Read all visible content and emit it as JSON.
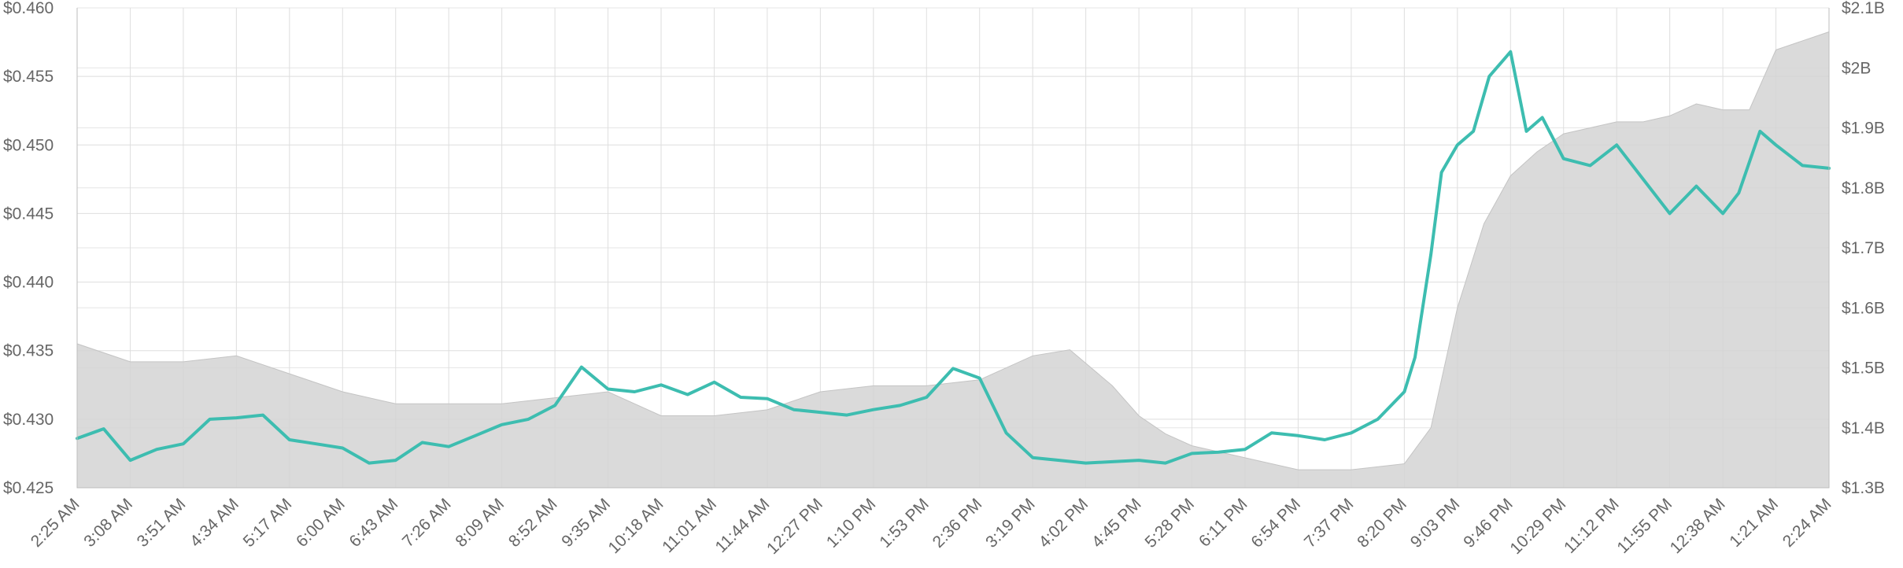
{
  "chart_data": {
    "type": "line",
    "title": "",
    "xlabel": "",
    "ylabel": "",
    "y2label": "",
    "grid": true,
    "legend": "none",
    "x_tick_labels": [
      "2:25 AM",
      "3:08 AM",
      "3:51 AM",
      "4:34 AM",
      "5:17 AM",
      "6:00 AM",
      "6:43 AM",
      "7:26 AM",
      "8:09 AM",
      "8:52 AM",
      "9:35 AM",
      "10:18 AM",
      "11:01 AM",
      "11:44 AM",
      "12:27 PM",
      "1:10 PM",
      "1:53 PM",
      "2:36 PM",
      "3:19 PM",
      "4:02 PM",
      "4:45 PM",
      "5:28 PM",
      "6:11 PM",
      "6:54 PM",
      "7:37 PM",
      "8:20 PM",
      "9:03 PM",
      "9:46 PM",
      "10:29 PM",
      "11:12 PM",
      "11:55 PM",
      "12:38 AM",
      "1:21 AM",
      "2:24 AM"
    ],
    "y_left": {
      "min": 0.425,
      "max": 0.46,
      "ticks": [
        0.425,
        0.43,
        0.435,
        0.44,
        0.445,
        0.45,
        0.455,
        0.46
      ],
      "tick_labels": [
        "$0.425",
        "$0.430",
        "$0.435",
        "$0.440",
        "$0.445",
        "$0.450",
        "$0.455",
        "$0.460"
      ]
    },
    "y_right": {
      "min": 1300000000,
      "max": 2100000000,
      "ticks": [
        1300000000,
        1400000000,
        1500000000,
        1600000000,
        1700000000,
        1800000000,
        1900000000,
        2000000000,
        2100000000
      ],
      "tick_labels": [
        "$1.3B",
        "$1.4B",
        "$1.5B",
        "$1.6B",
        "$1.7B",
        "$1.8B",
        "$1.9B",
        "$2B",
        "$2.1B"
      ]
    },
    "series": [
      {
        "kind": "line",
        "axis": "left",
        "color": "#3dbdb0",
        "x": [
          0,
          0.5,
          1,
          1.5,
          2,
          2.5,
          3,
          3.5,
          4,
          4.5,
          5,
          5.5,
          6,
          6.5,
          7,
          7.5,
          8,
          8.5,
          9,
          9.5,
          10,
          10.5,
          11,
          11.5,
          12,
          12.5,
          13,
          13.5,
          14,
          14.5,
          15,
          15.5,
          16,
          16.5,
          17,
          17.5,
          18,
          18.5,
          19,
          19.5,
          20,
          20.5,
          21,
          21.5,
          22,
          22.5,
          23,
          23.5,
          24,
          24.5,
          25,
          25.2,
          25.5,
          25.7,
          26,
          26.3,
          26.6,
          27,
          27.3,
          27.6,
          28,
          28.5,
          29,
          29.5,
          30,
          30.5,
          31,
          31.3,
          31.7,
          32,
          32.5,
          33
        ],
        "y": [
          0.4286,
          0.4293,
          0.427,
          0.4278,
          0.4282,
          0.43,
          0.4301,
          0.4303,
          0.4285,
          0.4282,
          0.4279,
          0.4268,
          0.427,
          0.4283,
          0.428,
          0.4288,
          0.4296,
          0.43,
          0.431,
          0.4338,
          0.4322,
          0.432,
          0.4325,
          0.4318,
          0.4327,
          0.4316,
          0.4315,
          0.4307,
          0.4305,
          0.4303,
          0.4307,
          0.431,
          0.4316,
          0.4337,
          0.433,
          0.429,
          0.4272,
          0.427,
          0.4268,
          0.4269,
          0.427,
          0.4268,
          0.4275,
          0.4276,
          0.4278,
          0.429,
          0.4288,
          0.4285,
          0.429,
          0.43,
          0.432,
          0.4345,
          0.442,
          0.448,
          0.45,
          0.451,
          0.455,
          0.4568,
          0.451,
          0.452,
          0.449,
          0.4485,
          0.45,
          0.4475,
          0.445,
          0.447,
          0.445,
          0.4465,
          0.451,
          0.45,
          0.4485,
          0.4483
        ]
      },
      {
        "kind": "area",
        "axis": "right",
        "name": "",
        "color": "#d3d3d3",
        "x": [
          0,
          1,
          2,
          3,
          4,
          5,
          6,
          7,
          8,
          9,
          10,
          11,
          12,
          13,
          14,
          15,
          16,
          17,
          18,
          18.7,
          19.5,
          20,
          20.5,
          21,
          22,
          23,
          24,
          25,
          25.5,
          26,
          26.5,
          27,
          27.5,
          28,
          28.5,
          29,
          29.5,
          30,
          30.5,
          31,
          31.5,
          32,
          33
        ],
        "y": [
          1540000000.0,
          1510000000.0,
          1510000000.0,
          1520000000.0,
          1490000000.0,
          1460000000.0,
          1440000000.0,
          1440000000.0,
          1440000000.0,
          1450000000.0,
          1460000000.0,
          1420000000.0,
          1420000000.0,
          1430000000.0,
          1460000000.0,
          1470000000.0,
          1470000000.0,
          1480000000.0,
          1520000000.0,
          1530000000.0,
          1470000000.0,
          1420000000.0,
          1390000000.0,
          1370000000.0,
          1350000000.0,
          1330000000.0,
          1330000000.0,
          1340000000.0,
          1400000000.0,
          1600000000.0,
          1740000000.0,
          1820000000.0,
          1860000000.0,
          1890000000.0,
          1900000000.0,
          1910000000.0,
          1910000000.0,
          1920000000.0,
          1940000000.0,
          1930000000.0,
          1930000000.0,
          2030000000.0,
          2060000000.0
        ]
      }
    ]
  }
}
